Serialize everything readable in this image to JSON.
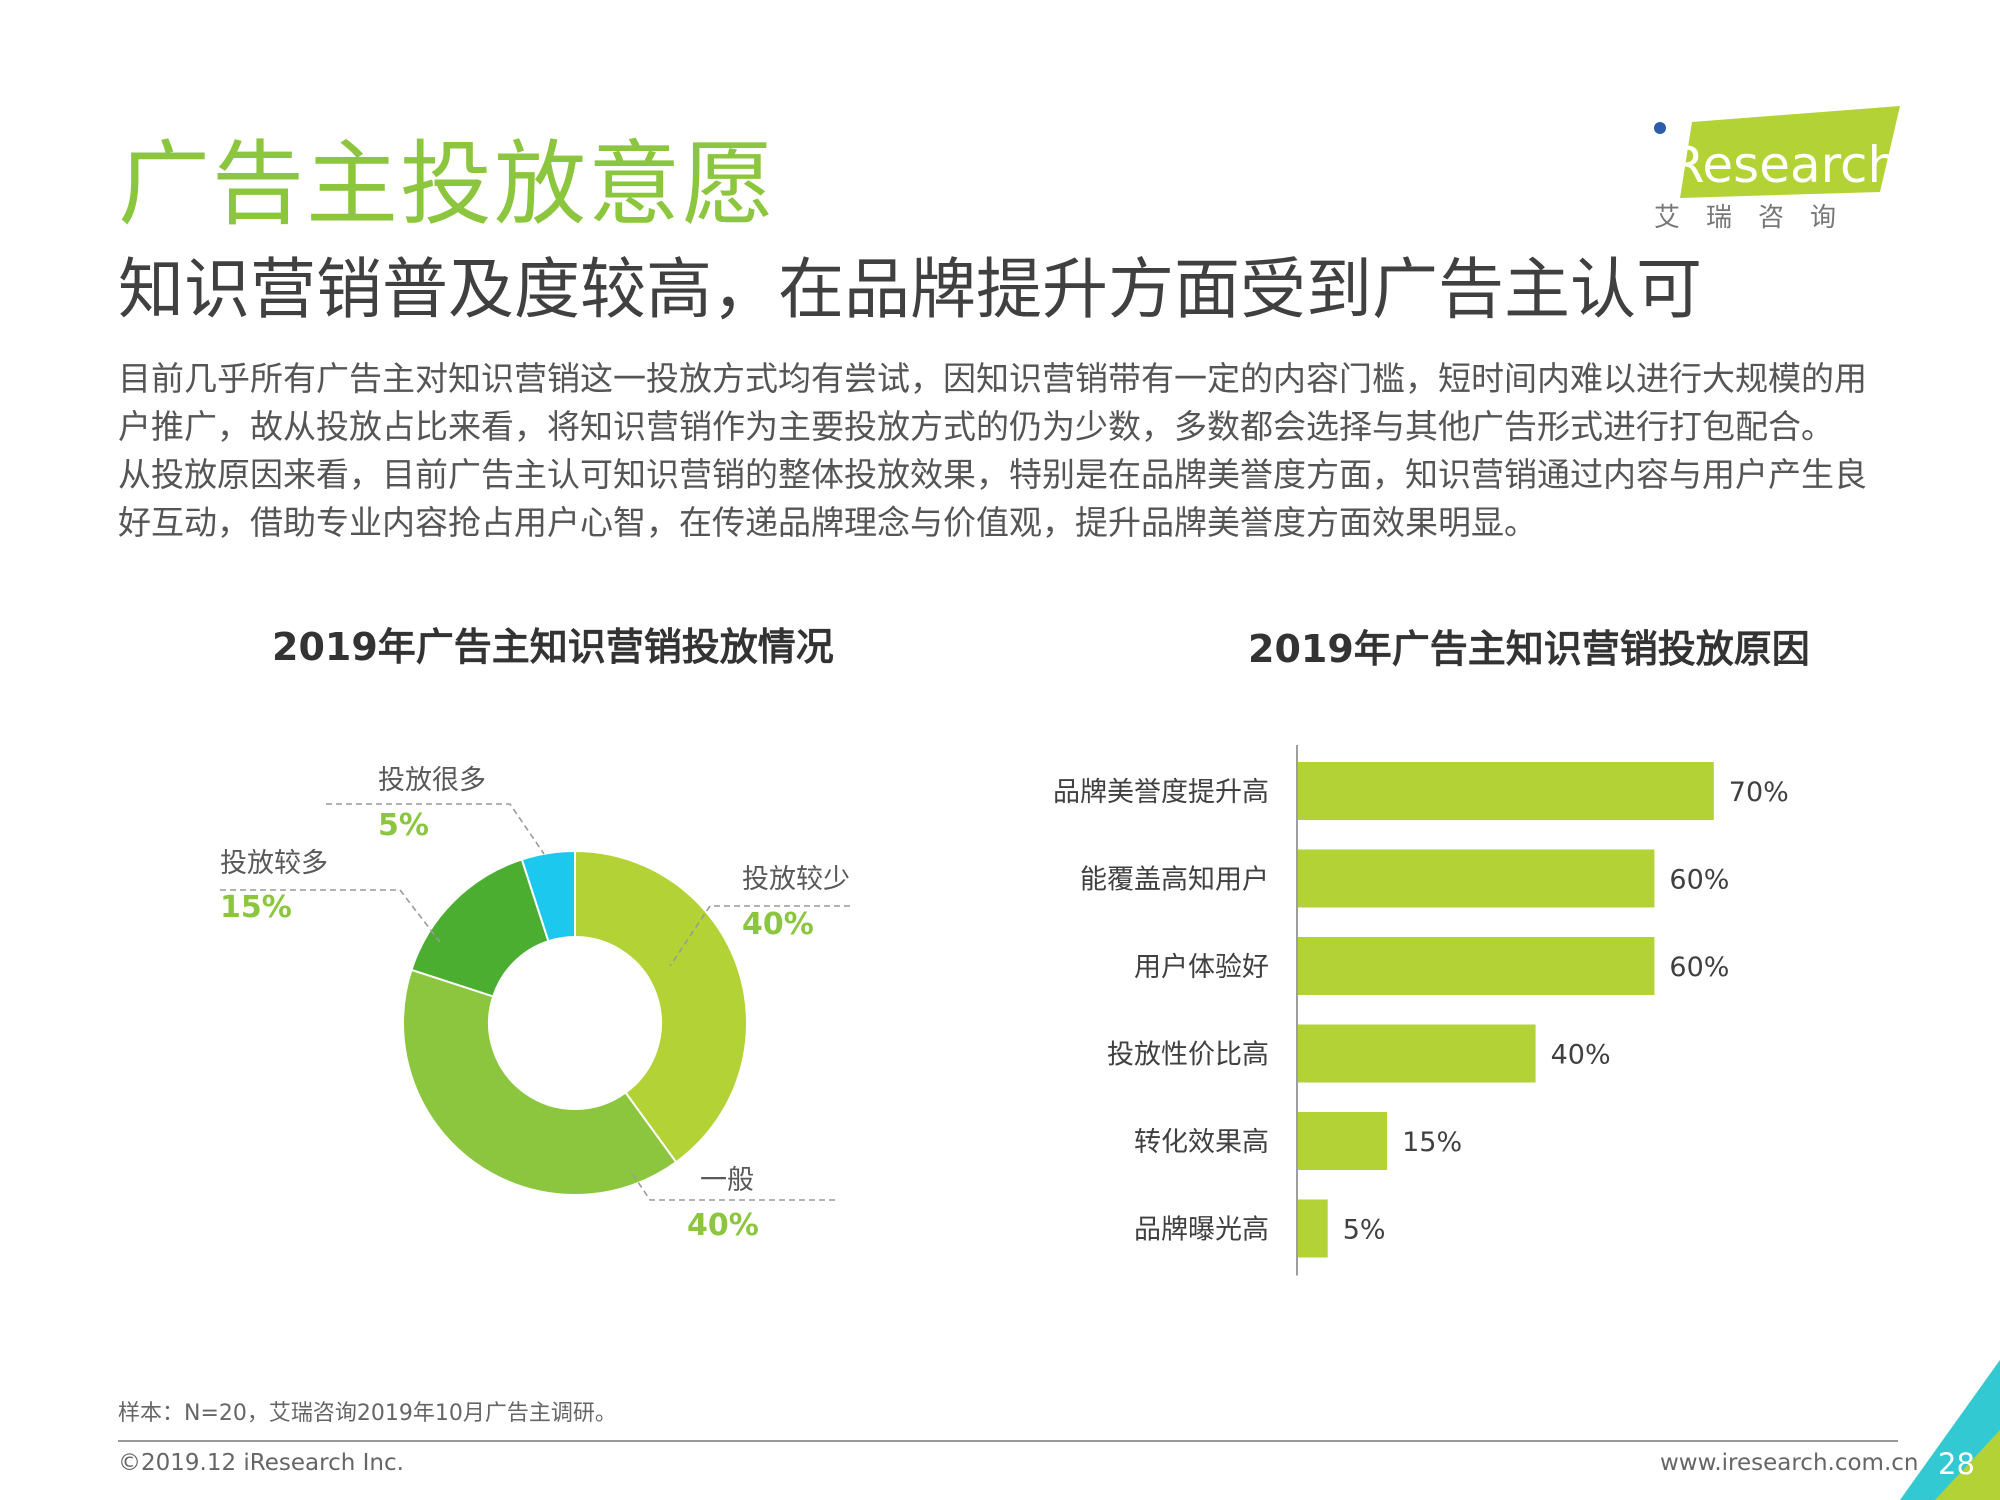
{
  "header": {
    "title": "广告主投放意愿",
    "subtitle": "知识营销普及度较高，在品牌提升方面受到广告主认可",
    "body_lines": [
      "目前几乎所有广告主对知识营销这一投放方式均有尝试，因知识营销带有一定的内容门槛，短时间内难以进行大规模的用",
      "户推广，故从投放占比来看，将知识营销作为主要投放方式的仍为少数，多数都会选择与其他广告形式进行打包配合。",
      "从投放原因来看，目前广告主认可知识营销的整体投放效果，特别是在品牌美誉度方面，知识营销通过内容与用户产生良",
      "好互动，借助专业内容抢占用户心智，在传递品牌理念与价值观，提升品牌美誉度方面效果明显。"
    ]
  },
  "logo": {
    "text": "iResearch",
    "chinese": "艾　瑞　咨　询"
  },
  "chart_data": [
    {
      "type": "pie",
      "donut": true,
      "title": "2019年广告主知识营销投放情况",
      "categories": [
        "投放较少",
        "一般",
        "投放较多",
        "投放很多"
      ],
      "values": [
        40,
        40,
        15,
        5
      ],
      "value_labels": [
        "40%",
        "40%",
        "15%",
        "5%"
      ],
      "colors": [
        "#B2D235",
        "#8CC63F",
        "#4BAE31",
        "#1CC8EE"
      ]
    },
    {
      "type": "bar",
      "orientation": "horizontal",
      "title": "2019年广告主知识营销投放原因",
      "categories": [
        "品牌美誉度提升高",
        "能覆盖高知用户",
        "用户体验好",
        "投放性价比高",
        "转化效果高",
        "品牌曝光高"
      ],
      "values": [
        70,
        60,
        60,
        40,
        15,
        5
      ],
      "value_labels": [
        "70%",
        "60%",
        "60%",
        "40%",
        "15%",
        "5%"
      ],
      "xlim": [
        0,
        100
      ],
      "color": "#B2D235"
    }
  ],
  "footnote": "样本：N=20，艾瑞咨询2019年10月广告主调研。",
  "footer": {
    "copyright": "©2019.12 iResearch Inc.",
    "url": "www.iresearch.com.cn",
    "page_number": "28"
  },
  "colors": {
    "title_green": "#8CC63F",
    "bar_green": "#B2D235",
    "dark_green": "#4BAE31",
    "cyan": "#1CC8EE",
    "text": "#404040"
  }
}
